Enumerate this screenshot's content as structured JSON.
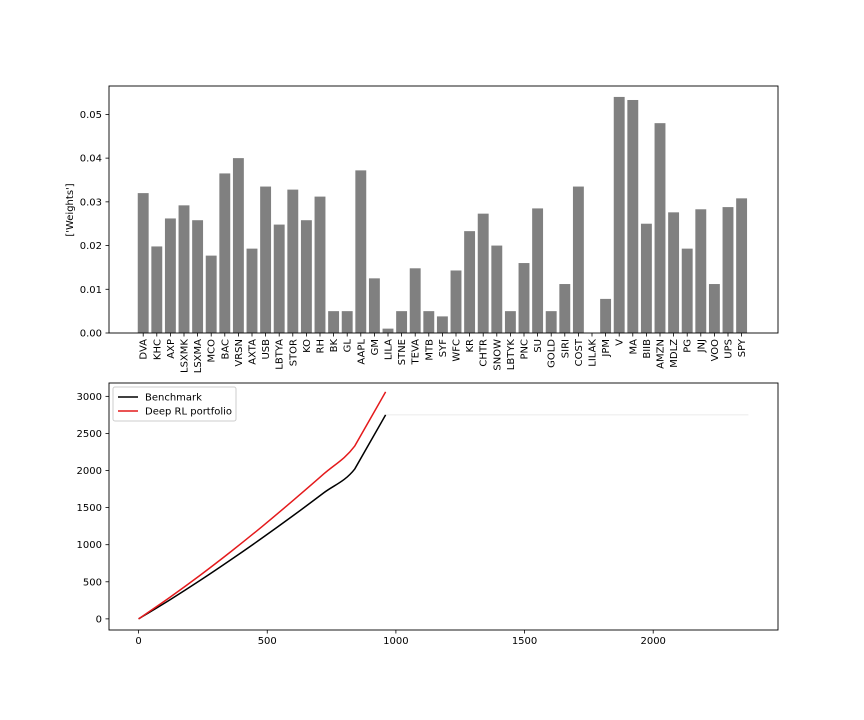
{
  "chart_data": [
    {
      "type": "bar",
      "ylabel": "['Weights']",
      "ylim": [
        0,
        0.0565
      ],
      "yticks": [
        0.0,
        0.01,
        0.02,
        0.03,
        0.04,
        0.05
      ],
      "ytick_labels": [
        "0.00",
        "0.01",
        "0.02",
        "0.03",
        "0.04",
        "0.05"
      ],
      "bar_color": "#808080",
      "categories": [
        "DVA",
        "KHC",
        "AXP",
        "LSXMK",
        "LSXMA",
        "MCO",
        "BAC",
        "VRSN",
        "AXTA",
        "USB",
        "LBTYA",
        "STOR",
        "KO",
        "RH",
        "BK",
        "GL",
        "AAPL",
        "GM",
        "LILA",
        "STNE",
        "TEVA",
        "MTB",
        "SYF",
        "WFC",
        "KR",
        "CHTR",
        "SNOW",
        "LBTYK",
        "PNC",
        "SU",
        "GOLD",
        "SIRI",
        "COST",
        "LILAK",
        "JPM",
        "V",
        "MA",
        "BIIB",
        "AMZN",
        "MDLZ",
        "PG",
        "JNJ",
        "VOO",
        "UPS",
        "SPY"
      ],
      "values": [
        0.032,
        0.0198,
        0.0262,
        0.0292,
        0.0258,
        0.0177,
        0.0365,
        0.04,
        0.0193,
        0.0335,
        0.0248,
        0.0328,
        0.0258,
        0.0312,
        0.005,
        0.005,
        0.0372,
        0.0125,
        0.001,
        0.005,
        0.0148,
        0.005,
        0.0038,
        0.0143,
        0.0233,
        0.0273,
        0.02,
        0.005,
        0.016,
        0.0285,
        0.005,
        0.0112,
        0.0335,
        0.0,
        0.0078,
        0.054,
        0.0533,
        0.025,
        0.048,
        0.0276,
        0.0193,
        0.0283,
        0.0112,
        0.0288,
        0.0308
      ]
    },
    {
      "type": "line",
      "xlim": [
        -115,
        2485
      ],
      "ylim": [
        -150,
        3180
      ],
      "xticks": [
        0,
        500,
        1000,
        1500,
        2000
      ],
      "xtick_labels": [
        "0",
        "500",
        "1000",
        "1500",
        "2000"
      ],
      "yticks": [
        0,
        500,
        1000,
        1500,
        2000,
        2500,
        3000
      ],
      "ytick_labels": [
        "0",
        "500",
        "1000",
        "1500",
        "2000",
        "2500",
        "3000"
      ],
      "legend": "upper-left",
      "series": [
        {
          "name": "Benchmark",
          "color": "#000000",
          "x": [
            0,
            120,
            240,
            360,
            480,
            600,
            720,
            840,
            960
          ],
          "y": [
            0,
            253,
            520,
            800,
            1090,
            1390,
            1700,
            2020,
            2750
          ]
        },
        {
          "name": "Deep RL portfolio",
          "color": "#e41a1c",
          "x": [
            0,
            120,
            240,
            360,
            480,
            600,
            720,
            840,
            960
          ],
          "y": [
            0,
            287,
            590,
            910,
            1245,
            1595,
            1955,
            2330,
            3060
          ]
        },
        {
          "name": "",
          "color": "#ebebeb",
          "x": [
            960,
            2370
          ],
          "y": [
            2750,
            2750
          ]
        }
      ]
    }
  ]
}
